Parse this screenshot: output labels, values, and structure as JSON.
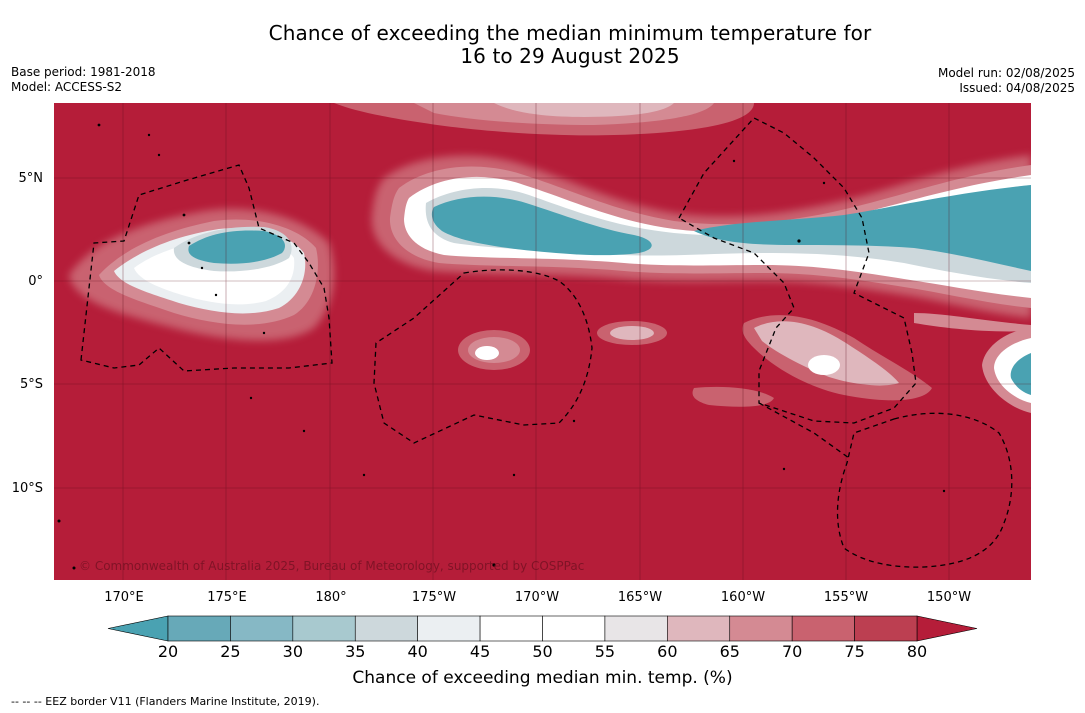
{
  "title": {
    "line1": "Chance of exceeding the median minimum temperature for",
    "line2": "16 to 29 August 2025"
  },
  "meta_left": {
    "base_period": "Base period: 1981-2018",
    "model": "Model: ACCESS-S2"
  },
  "meta_right": {
    "model_run": "Model run: 02/08/2025",
    "issued": "Issued: 04/08/2025"
  },
  "lat_labels": [
    "5°N",
    "0°",
    "5°S",
    "10°S"
  ],
  "lon_labels": [
    "170°E",
    "175°E",
    "180°",
    "175°W",
    "170°W",
    "165°W",
    "160°W",
    "155°W",
    "150°W"
  ],
  "colorbar": {
    "title": "Chance of exceeding median min. temp. (%)",
    "ticks": [
      "20",
      "25",
      "30",
      "35",
      "40",
      "45",
      "50",
      "55",
      "60",
      "65",
      "70",
      "75",
      "80"
    ],
    "colors": [
      "#67a9b8",
      "#86b8c5",
      "#a8c9cf",
      "#cdd8dc",
      "#ebeff2",
      "#ffffff",
      "#ffffff",
      "#e8e5e7",
      "#dfb7bd",
      "#d48a93",
      "#c9626f",
      "#bc3f51"
    ],
    "under_color": "#4aa2b2",
    "over_color": "#b51d39"
  },
  "map": {
    "background_color": "#b51d39",
    "copyright": "© Commonwealth of Australia 2025, Bureau of Meteorology, supported by COSPPac"
  },
  "footer": "--  --  -- EEZ border V11 (Flanders Marine Institute, 2019)."
}
